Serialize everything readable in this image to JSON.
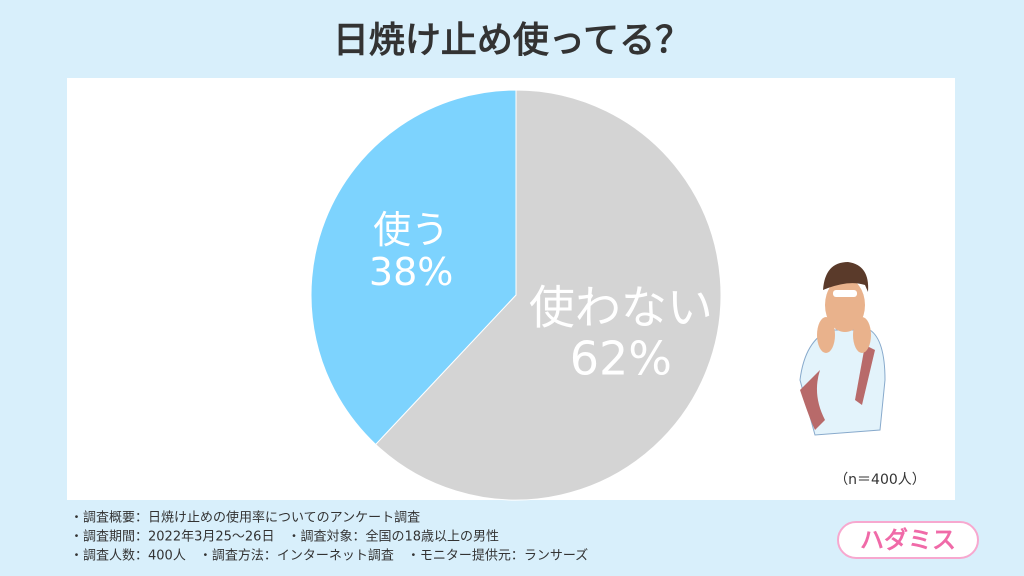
{
  "chart_data": {
    "type": "pie",
    "title": "日焼け止め使ってる？",
    "categories": [
      "使わない",
      "使う"
    ],
    "values": [
      62,
      38
    ],
    "value_labels": [
      "62%",
      "38%"
    ],
    "colors": [
      "#d4d4d4",
      "#7dd3fe"
    ],
    "annotation": "（n＝400人）"
  },
  "footer": {
    "notes": [
      "・調査概要：日焼け止めの使用率についてのアンケート調査",
      "・調査期間：2022年3月25〜26日　・調査対象：全国の18歳以上の男性",
      "・調査人数：400人　・調査方法：インターネット調査　・モニター提供元：ランサーズ"
    ],
    "logo": "ハダミス"
  }
}
